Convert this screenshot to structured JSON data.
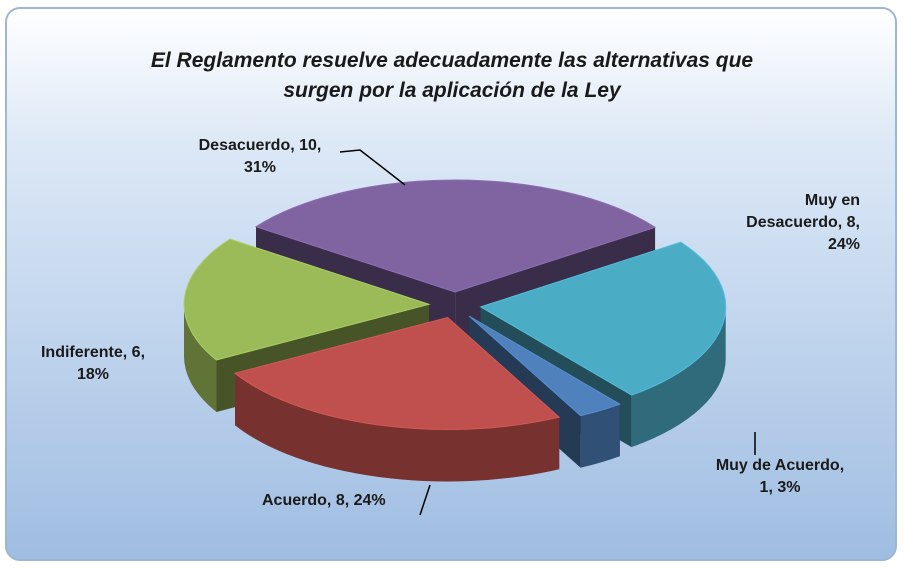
{
  "chart_data": {
    "type": "pie",
    "title": "El Reglamento resuelve adecuadamente las alternativas que surgen por la aplicación de la Ley",
    "categories": [
      "Muy de Acuerdo",
      "Acuerdo",
      "Indiferente",
      "Desacuerdo",
      "Muy en Desacuerdo"
    ],
    "values": [
      1,
      8,
      6,
      10,
      8
    ],
    "percent_labels": [
      "3%",
      "24%",
      "18%",
      "31%",
      "24%"
    ],
    "colors": [
      "#4f81bd",
      "#c0504d",
      "#9bbb59",
      "#8064a2",
      "#4bacc6"
    ],
    "start_angle": 52
  }
}
